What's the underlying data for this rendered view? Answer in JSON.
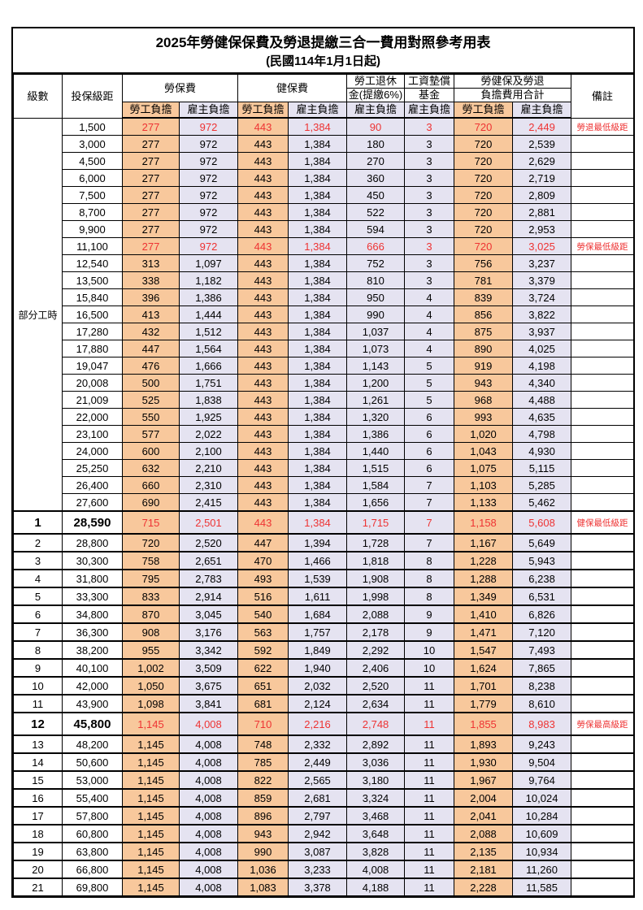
{
  "title": "2025年勞健保保費及勞退提繳三合一費用對照參考用表",
  "subtitle": "(民國114年1月1日起)",
  "colors": {
    "employee_column_bg": "#F8C89C",
    "employer_column_bg": "#E5E3F1",
    "highlight_text": "#EE3333",
    "border": "#000000"
  },
  "header": {
    "level": "級數",
    "salary": "投保級距",
    "labor_group": "勞保費",
    "health_group": "健保費",
    "pension_line1": "勞工退休",
    "pension_line2": "金(提繳6%)",
    "fund_line1": "工資墊償",
    "fund_line2": "基金",
    "total_line1": "勞健保及勞退",
    "total_line2": "負擔費用合計",
    "employee": "勞工負擔",
    "employer": "雇主負擔",
    "note": "備註"
  },
  "table": {
    "part_time_label": "部分工時",
    "part_time_row_count": 23,
    "row_fields": [
      "level",
      "salary",
      "labor_employee",
      "labor_employer",
      "health_employee",
      "health_employer",
      "pension_employer",
      "fund_employer",
      "total_employee",
      "total_employer",
      "note"
    ],
    "red_rows": [
      0,
      7,
      23,
      34
    ],
    "big_rows": [
      23,
      34
    ],
    "rows": [
      [
        "",
        "1,500",
        "277",
        "972",
        "443",
        "1,384",
        "90",
        "3",
        "720",
        "2,449",
        "勞退最低級距"
      ],
      [
        "",
        "3,000",
        "277",
        "972",
        "443",
        "1,384",
        "180",
        "3",
        "720",
        "2,539",
        ""
      ],
      [
        "",
        "4,500",
        "277",
        "972",
        "443",
        "1,384",
        "270",
        "3",
        "720",
        "2,629",
        ""
      ],
      [
        "",
        "6,000",
        "277",
        "972",
        "443",
        "1,384",
        "360",
        "3",
        "720",
        "2,719",
        ""
      ],
      [
        "",
        "7,500",
        "277",
        "972",
        "443",
        "1,384",
        "450",
        "3",
        "720",
        "2,809",
        ""
      ],
      [
        "",
        "8,700",
        "277",
        "972",
        "443",
        "1,384",
        "522",
        "3",
        "720",
        "2,881",
        ""
      ],
      [
        "",
        "9,900",
        "277",
        "972",
        "443",
        "1,384",
        "594",
        "3",
        "720",
        "2,953",
        ""
      ],
      [
        "",
        "11,100",
        "277",
        "972",
        "443",
        "1,384",
        "666",
        "3",
        "720",
        "3,025",
        "勞保最低級距"
      ],
      [
        "",
        "12,540",
        "313",
        "1,097",
        "443",
        "1,384",
        "752",
        "3",
        "756",
        "3,237",
        ""
      ],
      [
        "",
        "13,500",
        "338",
        "1,182",
        "443",
        "1,384",
        "810",
        "3",
        "781",
        "3,379",
        ""
      ],
      [
        "",
        "15,840",
        "396",
        "1,386",
        "443",
        "1,384",
        "950",
        "4",
        "839",
        "3,724",
        ""
      ],
      [
        "",
        "16,500",
        "413",
        "1,444",
        "443",
        "1,384",
        "990",
        "4",
        "856",
        "3,822",
        ""
      ],
      [
        "",
        "17,280",
        "432",
        "1,512",
        "443",
        "1,384",
        "1,037",
        "4",
        "875",
        "3,937",
        ""
      ],
      [
        "",
        "17,880",
        "447",
        "1,564",
        "443",
        "1,384",
        "1,073",
        "4",
        "890",
        "4,025",
        ""
      ],
      [
        "",
        "19,047",
        "476",
        "1,666",
        "443",
        "1,384",
        "1,143",
        "5",
        "919",
        "4,198",
        ""
      ],
      [
        "",
        "20,008",
        "500",
        "1,751",
        "443",
        "1,384",
        "1,200",
        "5",
        "943",
        "4,340",
        ""
      ],
      [
        "",
        "21,009",
        "525",
        "1,838",
        "443",
        "1,384",
        "1,261",
        "5",
        "968",
        "4,488",
        ""
      ],
      [
        "",
        "22,000",
        "550",
        "1,925",
        "443",
        "1,384",
        "1,320",
        "6",
        "993",
        "4,635",
        ""
      ],
      [
        "",
        "23,100",
        "577",
        "2,022",
        "443",
        "1,384",
        "1,386",
        "6",
        "1,020",
        "4,798",
        ""
      ],
      [
        "",
        "24,000",
        "600",
        "2,100",
        "443",
        "1,384",
        "1,440",
        "6",
        "1,043",
        "4,930",
        ""
      ],
      [
        "",
        "25,250",
        "632",
        "2,210",
        "443",
        "1,384",
        "1,515",
        "6",
        "1,075",
        "5,115",
        ""
      ],
      [
        "",
        "26,400",
        "660",
        "2,310",
        "443",
        "1,384",
        "1,584",
        "7",
        "1,103",
        "5,285",
        ""
      ],
      [
        "",
        "27,600",
        "690",
        "2,415",
        "443",
        "1,384",
        "1,656",
        "7",
        "1,133",
        "5,462",
        ""
      ],
      [
        "1",
        "28,590",
        "715",
        "2,501",
        "443",
        "1,384",
        "1,715",
        "7",
        "1,158",
        "5,608",
        "健保最低級距"
      ],
      [
        "2",
        "28,800",
        "720",
        "2,520",
        "447",
        "1,394",
        "1,728",
        "7",
        "1,167",
        "5,649",
        ""
      ],
      [
        "3",
        "30,300",
        "758",
        "2,651",
        "470",
        "1,466",
        "1,818",
        "8",
        "1,228",
        "5,943",
        ""
      ],
      [
        "4",
        "31,800",
        "795",
        "2,783",
        "493",
        "1,539",
        "1,908",
        "8",
        "1,288",
        "6,238",
        ""
      ],
      [
        "5",
        "33,300",
        "833",
        "2,914",
        "516",
        "1,611",
        "1,998",
        "8",
        "1,349",
        "6,531",
        ""
      ],
      [
        "6",
        "34,800",
        "870",
        "3,045",
        "540",
        "1,684",
        "2,088",
        "9",
        "1,410",
        "6,826",
        ""
      ],
      [
        "7",
        "36,300",
        "908",
        "3,176",
        "563",
        "1,757",
        "2,178",
        "9",
        "1,471",
        "7,120",
        ""
      ],
      [
        "8",
        "38,200",
        "955",
        "3,342",
        "592",
        "1,849",
        "2,292",
        "10",
        "1,547",
        "7,493",
        ""
      ],
      [
        "9",
        "40,100",
        "1,002",
        "3,509",
        "622",
        "1,940",
        "2,406",
        "10",
        "1,624",
        "7,865",
        ""
      ],
      [
        "10",
        "42,000",
        "1,050",
        "3,675",
        "651",
        "2,032",
        "2,520",
        "11",
        "1,701",
        "8,238",
        ""
      ],
      [
        "11",
        "43,900",
        "1,098",
        "3,841",
        "681",
        "2,124",
        "2,634",
        "11",
        "1,779",
        "8,610",
        ""
      ],
      [
        "12",
        "45,800",
        "1,145",
        "4,008",
        "710",
        "2,216",
        "2,748",
        "11",
        "1,855",
        "8,983",
        "勞保最高級距"
      ],
      [
        "13",
        "48,200",
        "1,145",
        "4,008",
        "748",
        "2,332",
        "2,892",
        "11",
        "1,893",
        "9,243",
        ""
      ],
      [
        "14",
        "50,600",
        "1,145",
        "4,008",
        "785",
        "2,449",
        "3,036",
        "11",
        "1,930",
        "9,504",
        ""
      ],
      [
        "15",
        "53,000",
        "1,145",
        "4,008",
        "822",
        "2,565",
        "3,180",
        "11",
        "1,967",
        "9,764",
        ""
      ],
      [
        "16",
        "55,400",
        "1,145",
        "4,008",
        "859",
        "2,681",
        "3,324",
        "11",
        "2,004",
        "10,024",
        ""
      ],
      [
        "17",
        "57,800",
        "1,145",
        "4,008",
        "896",
        "2,797",
        "3,468",
        "11",
        "2,041",
        "10,284",
        ""
      ],
      [
        "18",
        "60,800",
        "1,145",
        "4,008",
        "943",
        "2,942",
        "3,648",
        "11",
        "2,088",
        "10,609",
        ""
      ],
      [
        "19",
        "63,800",
        "1,145",
        "4,008",
        "990",
        "3,087",
        "3,828",
        "11",
        "2,135",
        "10,934",
        ""
      ],
      [
        "20",
        "66,800",
        "1,145",
        "4,008",
        "1,036",
        "3,233",
        "4,008",
        "11",
        "2,181",
        "11,260",
        ""
      ],
      [
        "21",
        "69,800",
        "1,145",
        "4,008",
        "1,083",
        "3,378",
        "4,188",
        "11",
        "2,228",
        "11,585",
        ""
      ]
    ]
  }
}
